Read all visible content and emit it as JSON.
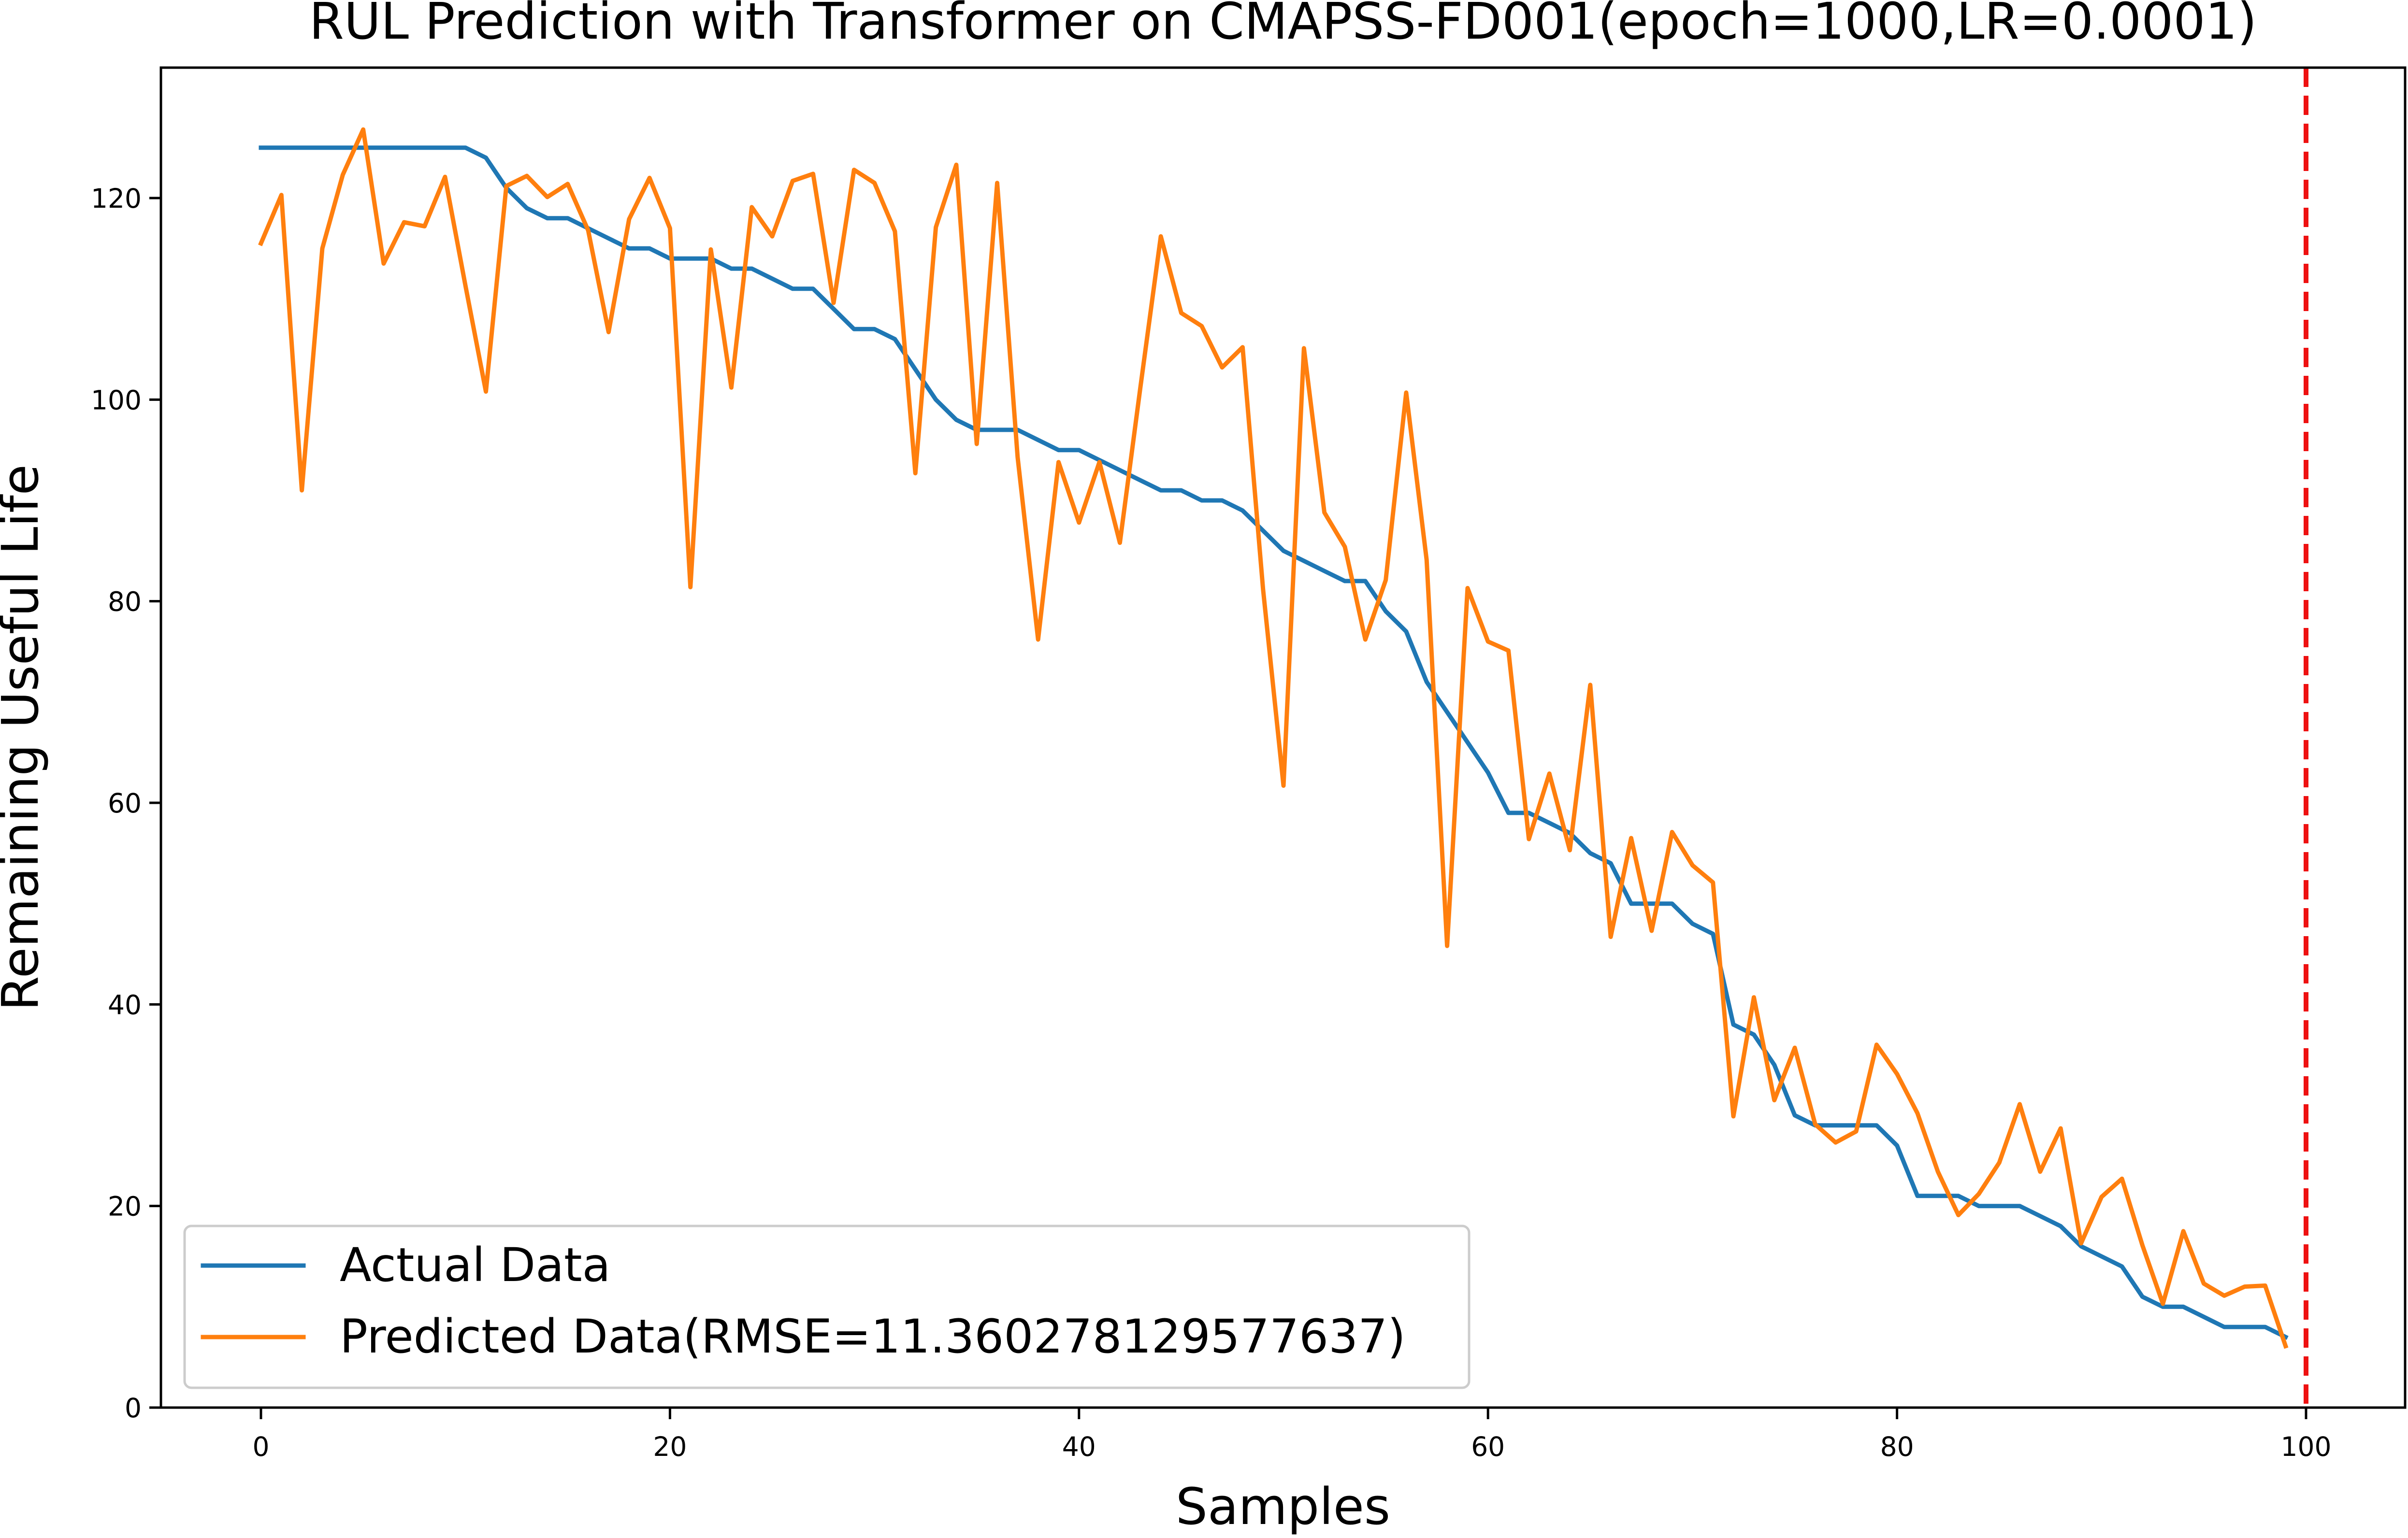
{
  "chart_data": {
    "type": "line",
    "title": "RUL Prediction with Transformer on CMAPSS-FD001(epoch=1000,LR=0.0001)",
    "xlabel": "Samples",
    "ylabel": "Remaining Useful Life",
    "xlim": [
      -5,
      104
    ],
    "ylim": [
      0,
      133
    ],
    "xticks": [
      0,
      20,
      40,
      60,
      80,
      100
    ],
    "yticks": [
      0,
      20,
      40,
      60,
      80,
      100,
      120
    ],
    "grid": false,
    "legend_position": "lower-left",
    "vline": {
      "x": 100,
      "color": "#ee1111",
      "style": "dashed"
    },
    "series": [
      {
        "name": "Actual Data",
        "color": "#1f77b4",
        "x": [
          0,
          1,
          2,
          3,
          4,
          5,
          6,
          7,
          8,
          9,
          10,
          11,
          12,
          13,
          14,
          15,
          16,
          17,
          18,
          19,
          20,
          21,
          22,
          23,
          24,
          25,
          26,
          27,
          28,
          29,
          30,
          31,
          32,
          33,
          34,
          35,
          36,
          37,
          38,
          39,
          40,
          41,
          42,
          43,
          44,
          45,
          46,
          47,
          48,
          49,
          50,
          51,
          52,
          53,
          54,
          55,
          56,
          57,
          58,
          59,
          60,
          61,
          62,
          63,
          64,
          65,
          66,
          67,
          68,
          69,
          70,
          71,
          72,
          73,
          74,
          75,
          76,
          77,
          78,
          79,
          80,
          81,
          82,
          83,
          84,
          85,
          86,
          87,
          88,
          89,
          90,
          91,
          92,
          93,
          94,
          95,
          96,
          97,
          98,
          99
        ],
        "values": [
          125,
          125,
          125,
          125,
          125,
          125,
          125,
          125,
          125,
          125,
          125,
          124,
          121,
          119,
          118,
          118,
          117,
          116,
          115,
          115,
          114,
          114,
          114,
          113,
          113,
          112,
          111,
          111,
          109,
          107,
          107,
          106,
          103,
          100,
          98,
          97,
          97,
          97,
          96,
          95,
          95,
          94,
          93,
          92,
          91,
          91,
          90,
          90,
          89,
          87,
          85,
          84,
          83,
          82,
          82,
          79,
          77,
          72,
          69,
          66,
          63,
          59,
          59,
          58,
          57,
          55,
          54,
          50,
          50,
          50,
          48,
          47,
          38,
          37,
          34,
          29,
          28,
          28,
          28,
          28,
          26,
          21,
          21,
          21,
          20,
          20,
          20,
          19,
          18,
          16,
          15,
          14,
          11,
          10,
          10,
          9,
          8,
          8,
          8,
          7
        ]
      },
      {
        "name": "Predicted Data(RMSE=11.360278129577637)",
        "color": "#ff7f0e",
        "x": [
          0,
          1,
          2,
          3,
          4,
          5,
          6,
          7,
          8,
          9,
          10,
          11,
          12,
          13,
          14,
          15,
          16,
          17,
          18,
          19,
          20,
          21,
          22,
          23,
          24,
          25,
          26,
          27,
          28,
          29,
          30,
          31,
          32,
          33,
          34,
          35,
          36,
          37,
          38,
          39,
          40,
          41,
          42,
          43,
          44,
          45,
          46,
          47,
          48,
          49,
          50,
          51,
          52,
          53,
          54,
          55,
          56,
          57,
          58,
          59,
          60,
          61,
          62,
          63,
          64,
          65,
          66,
          67,
          68,
          69,
          70,
          71,
          72,
          73,
          74,
          75,
          76,
          77,
          78,
          79,
          80,
          81,
          82,
          83,
          84,
          85,
          86,
          87,
          88,
          89,
          90,
          91,
          92,
          93,
          94,
          95,
          96,
          97,
          98,
          99
        ],
        "values": [
          115.5,
          120.3,
          91,
          115,
          122.3,
          126.8,
          113.5,
          117.6,
          117.2,
          122.1,
          111.3,
          100.8,
          121.2,
          122.2,
          120.1,
          121.4,
          116.8,
          106.7,
          117.9,
          122,
          117,
          81.4,
          114.9,
          101.2,
          119.1,
          116.2,
          121.7,
          122.4,
          109.6,
          122.8,
          121.5,
          116.7,
          92.7,
          117.1,
          123.3,
          95.6,
          121.5,
          94.3,
          76.2,
          93.8,
          87.8,
          93.8,
          85.8,
          101.2,
          116.2,
          108.6,
          107.3,
          103.2,
          105.2,
          81.2,
          61.7,
          105.1,
          88.8,
          85.4,
          76.2,
          82.1,
          100.7,
          84.1,
          45.8,
          81.3,
          76,
          75.1,
          56.4,
          62.9,
          55.3,
          71.7,
          46.7,
          56.5,
          47.3,
          57.1,
          53.8,
          52.1,
          28.9,
          40.7,
          30.5,
          35.7,
          28.1,
          26.3,
          27.4,
          36,
          33.1,
          29.2,
          23.4,
          19.1,
          21.2,
          24.3,
          30.1,
          23.4,
          27.7,
          16.3,
          20.9,
          22.7,
          16.1,
          10.3,
          17.5,
          12.3,
          11.1,
          12,
          12.1,
          6.1
        ]
      }
    ]
  }
}
